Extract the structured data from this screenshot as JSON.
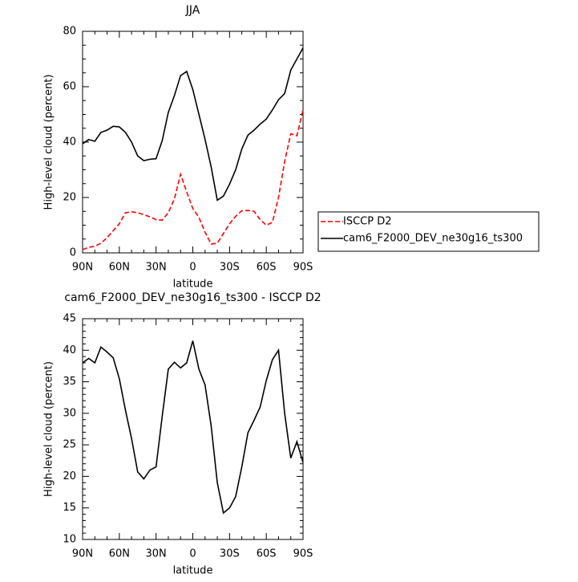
{
  "chart_data": [
    {
      "type": "line",
      "title": "JJA",
      "xlabel": "latitude",
      "ylabel": "High-level cloud (percent)",
      "x": [
        90,
        85,
        80,
        75,
        70,
        65,
        60,
        55,
        50,
        45,
        40,
        35,
        30,
        25,
        20,
        15,
        10,
        5,
        0,
        -5,
        -10,
        -15,
        -20,
        -25,
        -30,
        -35,
        -40,
        -45,
        -50,
        -55,
        -60,
        -65,
        -70,
        -75,
        -80,
        -85,
        -90
      ],
      "series": [
        {
          "name": "ISCCP D2",
          "color": "#ff0000",
          "style": "dashed",
          "values": [
            1.2,
            2,
            2.4,
            3.5,
            5.5,
            8,
            10.5,
            14.5,
            14.8,
            14.5,
            13.8,
            13,
            12,
            11.8,
            14.5,
            19.5,
            28.4,
            22,
            16,
            12.8,
            7.5,
            3.2,
            3.5,
            7,
            10.5,
            13.2,
            15.2,
            15.3,
            15,
            12,
            10,
            11,
            20,
            33,
            43,
            42.3,
            51.6
          ]
        },
        {
          "name": "cam6_F2000_DEV_ne30g16_ts300",
          "color": "#000000",
          "style": "solid",
          "values": [
            39.4,
            40.9,
            40.3,
            43.5,
            44.3,
            45.7,
            45.5,
            43.5,
            40,
            35,
            33.3,
            33.8,
            34,
            40.5,
            50.7,
            56.8,
            64,
            65.5,
            59,
            50,
            41,
            31,
            19,
            20.5,
            24.8,
            30,
            37.5,
            42.5,
            44.3,
            46.5,
            48.3,
            51.6,
            55.3,
            57.5,
            66,
            70,
            74
          ]
        }
      ],
      "xlim": [
        90,
        -90
      ],
      "xticks": [
        {
          "value": 90,
          "label": "90N"
        },
        {
          "value": 60,
          "label": "60N"
        },
        {
          "value": 30,
          "label": "30N"
        },
        0,
        {
          "value": -30,
          "label": "30S"
        },
        {
          "value": -60,
          "label": "60S"
        },
        {
          "value": -90,
          "label": "90S"
        }
      ],
      "ylim": [
        0,
        80
      ],
      "yticks": [
        0,
        20,
        40,
        60,
        80
      ],
      "legend": "right"
    },
    {
      "type": "line",
      "title": "cam6_F2000_DEV_ne30g16_ts300 - ISCCP D2",
      "xlabel": "latitude",
      "ylabel": "High-level cloud (percent)",
      "x": [
        90,
        85,
        80,
        75,
        70,
        65,
        60,
        55,
        50,
        45,
        40,
        35,
        30,
        25,
        20,
        15,
        10,
        5,
        0,
        -5,
        -10,
        -15,
        -20,
        -25,
        -30,
        -35,
        -40,
        -45,
        -50,
        -55,
        -60,
        -65,
        -70,
        -75,
        -80,
        -85,
        -90
      ],
      "series": [
        {
          "color": "#000000",
          "style": "solid",
          "values": [
            38,
            38.7,
            38,
            40.5,
            39.7,
            38.8,
            35.5,
            30.5,
            26,
            20.7,
            19.6,
            21,
            21.5,
            29.5,
            37,
            38.1,
            37.2,
            38,
            41.5,
            37,
            34.5,
            28,
            19,
            14.2,
            15,
            16.8,
            21.5,
            26.9,
            28.9,
            31,
            35.2,
            38.5,
            40,
            30,
            22.9,
            25.5,
            22.2
          ]
        }
      ],
      "xlim": [
        90,
        -90
      ],
      "xticks": [
        {
          "value": 90,
          "label": "90N"
        },
        {
          "value": 60,
          "label": "60N"
        },
        {
          "value": 30,
          "label": "30N"
        },
        0,
        {
          "value": -30,
          "label": "30S"
        },
        {
          "value": -60,
          "label": "60S"
        },
        {
          "value": -90,
          "label": "90S"
        }
      ],
      "ylim": [
        10,
        45
      ],
      "yticks": [
        10,
        15,
        20,
        25,
        30,
        35,
        40,
        45
      ]
    }
  ]
}
